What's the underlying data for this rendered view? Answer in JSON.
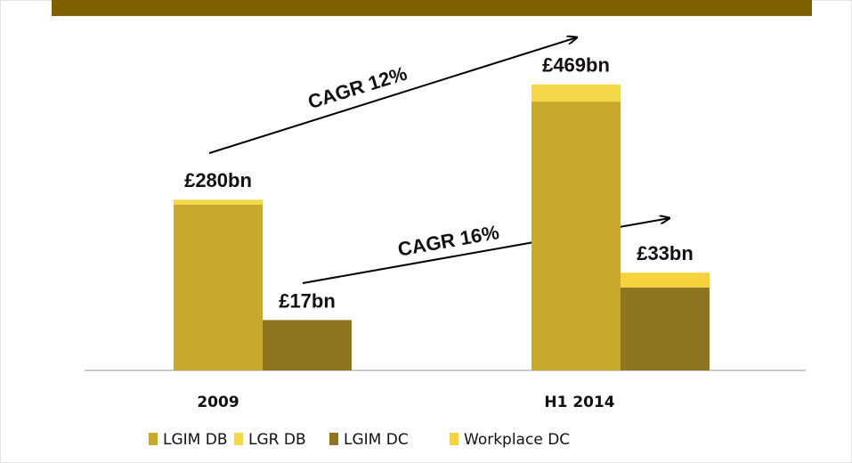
{
  "chart_data": {
    "type": "stacked_bar",
    "categories": [
      "2009",
      "H1  2014"
    ],
    "series": [
      {
        "name": "LGIM DB",
        "color": "#c9a92c",
        "values": [
          272,
          441
        ]
      },
      {
        "name": "LGR DB",
        "color": "#f3d84a",
        "values": [
          8,
          28
        ]
      },
      {
        "name": "LGIM DC",
        "color": "#8f7522",
        "values": [
          17,
          28
        ],
        "axis": "y2"
      },
      {
        "name": "Workplace DC",
        "color": "#f6d33c",
        "values": [
          0,
          5
        ],
        "axis": "y2"
      }
    ],
    "stack_labels": [
      [
        "£280bn",
        "£17bn"
      ],
      [
        "£469bn",
        "£33bn"
      ]
    ],
    "annotations": [
      "CAGR 12%",
      "CAGR 16%"
    ],
    "ylim": [
      0,
      520
    ],
    "y2lim": [
      0,
      107
    ]
  }
}
